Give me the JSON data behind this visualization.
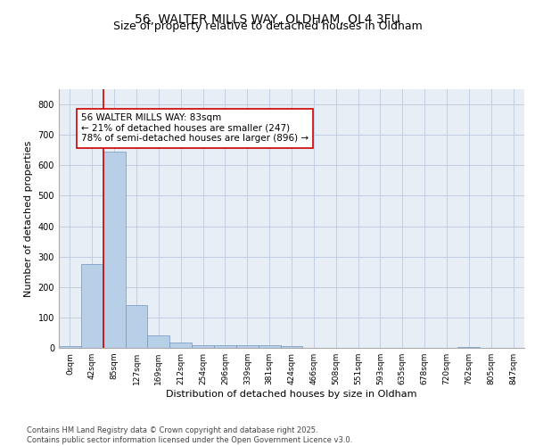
{
  "title_line1": "56, WALTER MILLS WAY, OLDHAM, OL4 3FU",
  "title_line2": "Size of property relative to detached houses in Oldham",
  "xlabel": "Distribution of detached houses by size in Oldham",
  "ylabel": "Number of detached properties",
  "bins": [
    "0sqm",
    "42sqm",
    "85sqm",
    "127sqm",
    "169sqm",
    "212sqm",
    "254sqm",
    "296sqm",
    "339sqm",
    "381sqm",
    "424sqm",
    "466sqm",
    "508sqm",
    "551sqm",
    "593sqm",
    "635sqm",
    "678sqm",
    "720sqm",
    "762sqm",
    "805sqm",
    "847sqm"
  ],
  "values": [
    7,
    275,
    645,
    140,
    42,
    18,
    10,
    8,
    8,
    10,
    5,
    0,
    0,
    0,
    0,
    0,
    0,
    0,
    3,
    0,
    0
  ],
  "bar_color": "#b8cfe8",
  "bar_edge_color": "#7096be",
  "bg_color": "#e8eef5",
  "grid_color": "#c0cfe0",
  "vline_color": "#cc0000",
  "annotation_text": "56 WALTER MILLS WAY: 83sqm\n← 21% of detached houses are smaller (247)\n78% of semi-detached houses are larger (896) →",
  "annotation_box_color": "#cc0000",
  "ylim": [
    0,
    850
  ],
  "yticks": [
    0,
    100,
    200,
    300,
    400,
    500,
    600,
    700,
    800
  ],
  "footer_text": "Contains HM Land Registry data © Crown copyright and database right 2025.\nContains public sector information licensed under the Open Government Licence v3.0.",
  "title_fontsize": 10,
  "subtitle_fontsize": 9,
  "axis_label_fontsize": 8,
  "tick_fontsize": 6.5,
  "annotation_fontsize": 7.5,
  "footer_fontsize": 6
}
